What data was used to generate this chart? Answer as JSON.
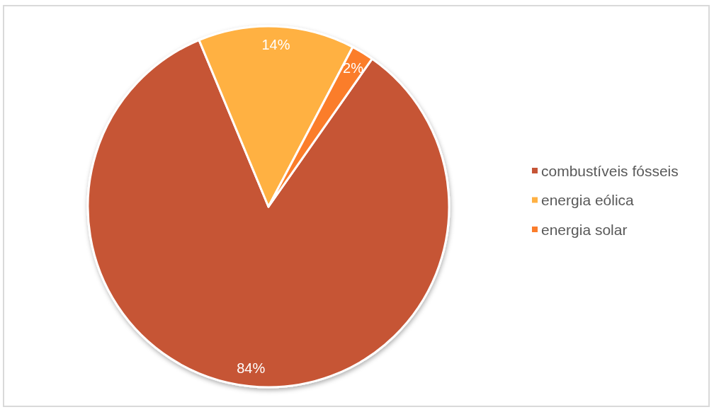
{
  "chart_data": {
    "type": "pie",
    "categories": [
      "combustíveis fósseis",
      "energia eólica",
      "energia solar"
    ],
    "values": [
      84,
      14,
      2
    ],
    "colors": [
      "#c65536",
      "#ffb143",
      "#fb7d2c"
    ],
    "value_labels": [
      "84%",
      "14%",
      "2%"
    ],
    "legend": "right"
  }
}
